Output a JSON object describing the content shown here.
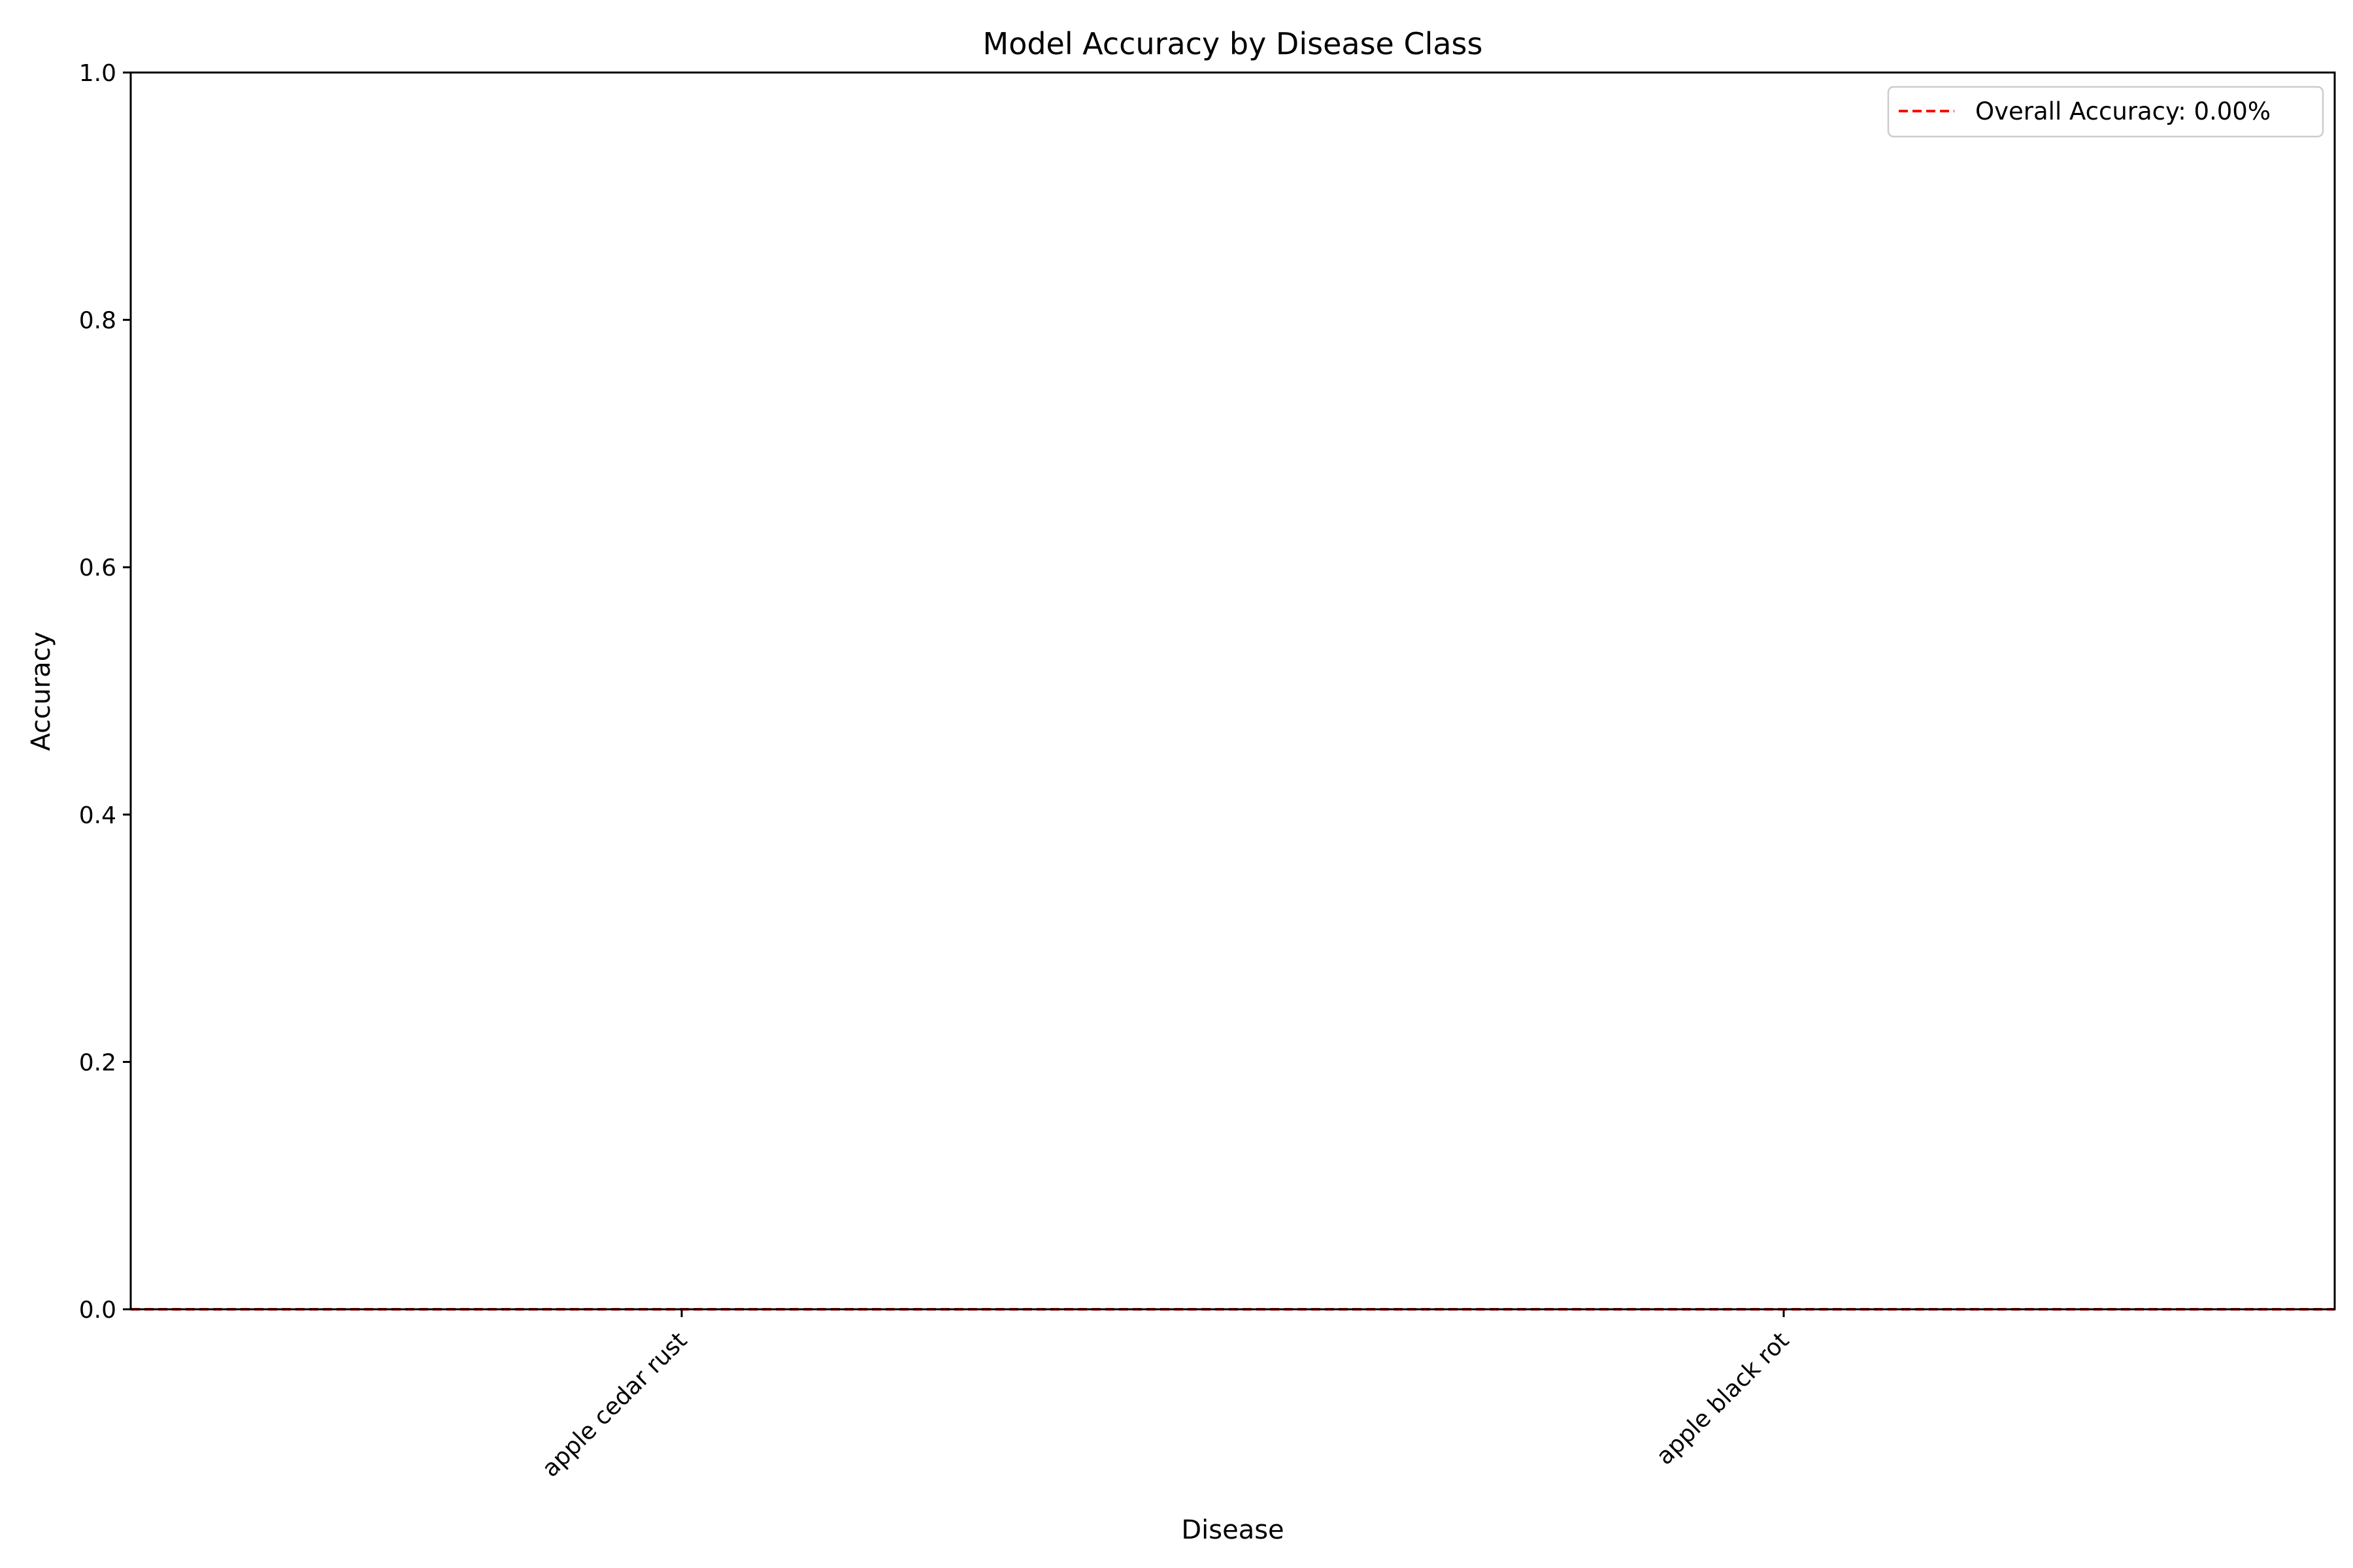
{
  "chart_data": {
    "type": "bar",
    "title": "Model Accuracy by Disease Class",
    "xlabel": "Disease",
    "ylabel": "Accuracy",
    "categories": [
      "apple cedar rust",
      "apple black rot"
    ],
    "values": [
      0.0,
      0.0
    ],
    "ylim": [
      0.0,
      1.0
    ],
    "yticks": [
      "0.0",
      "0.2",
      "0.4",
      "0.6",
      "0.8",
      "1.0"
    ],
    "grid": false,
    "reference_line": {
      "label": "Overall Accuracy: 0.00%",
      "value": 0.0,
      "style": "dashed",
      "color": "#ff0000"
    },
    "legend": {
      "placement": "top-right",
      "entries": [
        "Overall Accuracy: 0.00%"
      ]
    }
  }
}
